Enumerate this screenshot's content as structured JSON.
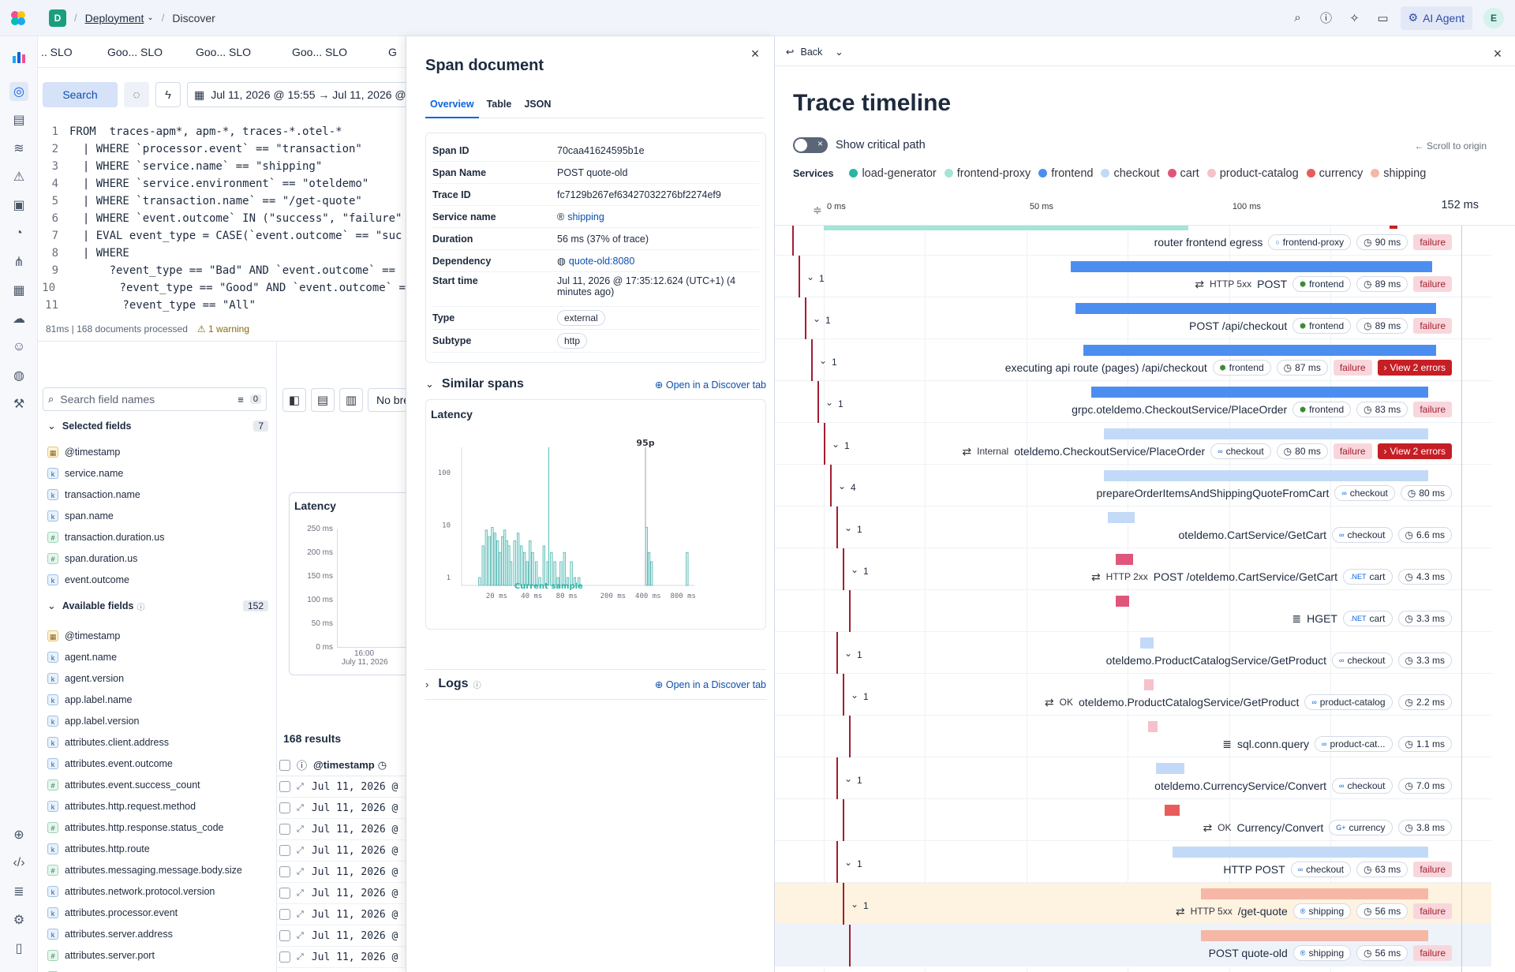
{
  "topbar": {
    "space_letter": "D",
    "breadcrumb_deployment": "Deployment",
    "breadcrumb_discover": "Discover",
    "ai_agent_label": "AI Agent",
    "user_initial": "E"
  },
  "discover": {
    "tabs": [
      ".. SLO",
      "Goo... SLO",
      "Goo... SLO",
      "Goo... SLO",
      "G"
    ],
    "search_label": "Search",
    "date_range": "Jul 11, 2026 @ 15:55 → Jul 11, 2026 @",
    "query_lines": [
      {
        "num": "1",
        "text": "FROM  traces-apm*, apm-*, traces-*.otel-*"
      },
      {
        "num": "2",
        "text": "  | WHERE `processor.event` == \"transaction\""
      },
      {
        "num": "3",
        "text": "  | WHERE `service.name` == \"shipping\""
      },
      {
        "num": "4",
        "text": "  | WHERE `service.environment` == \"oteldemo\""
      },
      {
        "num": "5",
        "text": "  | WHERE `transaction.name` == \"/get-quote\""
      },
      {
        "num": "6",
        "text": "  | WHERE `event.outcome` IN (\"success\", \"failure\""
      },
      {
        "num": "7",
        "text": "  | EVAL event_type = CASE(`event.outcome` == \"suc"
      },
      {
        "num": "8",
        "text": "  | WHERE"
      },
      {
        "num": "9",
        "text": "      ?event_type == \"Bad\" AND `event.outcome` =="
      },
      {
        "num": "10",
        "text": "        ?event_type == \"Good\" AND `event.outcome` ="
      },
      {
        "num": "11",
        "text": "        ?event_type == \"All\""
      }
    ],
    "stats": "81ms | 168 documents processed",
    "warning": "1 warning",
    "field_search_placeholder": "Search field names",
    "filter_count": "0",
    "selected_fields_label": "Selected fields",
    "selected_count": "7",
    "selected_fields": [
      {
        "type": "d",
        "name": "@timestamp"
      },
      {
        "type": "k",
        "name": "service.name"
      },
      {
        "type": "k",
        "name": "transaction.name"
      },
      {
        "type": "k",
        "name": "span.name"
      },
      {
        "type": "n",
        "name": "transaction.duration.us"
      },
      {
        "type": "n",
        "name": "span.duration.us"
      },
      {
        "type": "k",
        "name": "event.outcome"
      }
    ],
    "available_fields_label": "Available fields",
    "available_count": "152",
    "available_fields": [
      {
        "type": "d",
        "name": "@timestamp"
      },
      {
        "type": "k",
        "name": "agent.name"
      },
      {
        "type": "k",
        "name": "agent.version"
      },
      {
        "type": "k",
        "name": "app.label.name"
      },
      {
        "type": "k",
        "name": "app.label.version"
      },
      {
        "type": "k",
        "name": "attributes.client.address"
      },
      {
        "type": "k",
        "name": "attributes.event.outcome"
      },
      {
        "type": "n",
        "name": "attributes.event.success_count"
      },
      {
        "type": "k",
        "name": "attributes.http.request.method"
      },
      {
        "type": "n",
        "name": "attributes.http.response.status_code"
      },
      {
        "type": "k",
        "name": "attributes.http.route"
      },
      {
        "type": "n",
        "name": "attributes.messaging.message.body.size"
      },
      {
        "type": "k",
        "name": "attributes.network.protocol.version"
      },
      {
        "type": "k",
        "name": "attributes.processor.event"
      },
      {
        "type": "k",
        "name": "attributes.server.address"
      },
      {
        "type": "n",
        "name": "attributes.server.port"
      },
      {
        "type": "n",
        "name": "attributes.timestamp.us"
      },
      {
        "type": "n",
        "name": "attributes.transaction.duration.us"
      }
    ],
    "breakdown_placeholder": "No bre",
    "latency_title": "Latency",
    "latency_yticks": [
      "250 ms",
      "200 ms",
      "150 ms",
      "100 ms",
      "50 ms",
      "0 ms"
    ],
    "latency_xtick": "16:00",
    "latency_xdate": "July 11, 2026",
    "results_label": "168 results",
    "timestamp_col": "@timestamp",
    "result_rows": [
      "Jul 11, 2026 @",
      "Jul 11, 2026 @",
      "Jul 11, 2026 @",
      "Jul 11, 2026 @",
      "Jul 11, 2026 @",
      "Jul 11, 2026 @",
      "Jul 11, 2026 @",
      "Jul 11, 2026 @",
      "Jul 11, 2026 @"
    ]
  },
  "span_panel": {
    "title": "Span document",
    "tabs": [
      "Overview",
      "Table",
      "JSON"
    ],
    "fields": [
      {
        "label": "Span ID",
        "value": "70caa41624595b1e"
      },
      {
        "label": "Span Name",
        "value": "POST quote-old"
      },
      {
        "label": "Trace ID",
        "value": "fc7129b267ef63427032276bf2274ef9"
      },
      {
        "label": "Service name",
        "value": "shipping"
      },
      {
        "label": "Duration",
        "value": "56 ms  (37% of trace)"
      },
      {
        "label": "Dependency",
        "value": "quote-old:8080"
      },
      {
        "label": "Start time",
        "value": "Jul 11, 2026 @ 17:35:12.624 (UTC+1) (4 minutes ago)"
      },
      {
        "label": "Type",
        "value": "external"
      },
      {
        "label": "Subtype",
        "value": "http"
      }
    ],
    "similar_spans": "Similar spans",
    "open_discover": "Open in a Discover tab",
    "latency_title": "Latency",
    "logs": "Logs",
    "colors": {
      "accent": "#0b64dd",
      "hist_fill": "#d9f3f1",
      "hist_line": "#54b5b0"
    }
  },
  "chart_data": {
    "type": "bar",
    "title": "Latency",
    "y_scale": "log",
    "yticks": [
      "100",
      "10",
      "1"
    ],
    "xticks": [
      "20 ms",
      "40 ms",
      "80 ms",
      "200 ms",
      "400 ms",
      "800 ms"
    ],
    "annotations": [
      "95p",
      "Current sample"
    ],
    "x_ms": [
      14,
      15,
      16,
      17,
      18,
      19,
      20,
      21,
      22,
      23,
      24,
      25,
      26,
      28,
      30,
      32,
      34,
      36,
      38,
      40,
      43,
      46,
      50,
      54,
      58,
      62,
      66,
      70,
      75,
      80,
      86,
      92,
      100,
      380,
      400,
      420,
      850
    ],
    "counts": [
      1,
      4,
      8,
      6,
      9,
      7,
      5,
      3,
      6,
      8,
      5,
      4,
      2,
      5,
      7,
      4,
      3,
      2,
      5,
      3,
      2,
      1,
      4,
      2,
      3,
      2,
      1,
      2,
      3,
      1,
      2,
      1,
      1,
      9,
      3,
      2,
      3
    ]
  },
  "trace": {
    "back_label": "Back",
    "title": "Trace timeline",
    "critical_path": "Show critical path",
    "scroll_origin": "Scroll to origin",
    "services_label": "Services",
    "services": [
      {
        "name": "load-generator",
        "color": "#2bb5a5"
      },
      {
        "name": "frontend-proxy",
        "color": "#a6e3d8"
      },
      {
        "name": "frontend",
        "color": "#4c8ef0"
      },
      {
        "name": "checkout",
        "color": "#c2daf7"
      },
      {
        "name": "cart",
        "color": "#e0567a"
      },
      {
        "name": "product-catalog",
        "color": "#f6c1ca"
      },
      {
        "name": "currency",
        "color": "#e85c5c"
      },
      {
        "name": "shipping",
        "color": "#f6b7a7"
      }
    ],
    "axis_ticks": [
      "0 ms",
      "50 ms",
      "100 ms"
    ],
    "axis_max": "152 ms",
    "total_ms": 152,
    "rows": [
      {
        "depth": 0,
        "count": "",
        "start": 0,
        "dur": 90,
        "color": "#a6e3d8",
        "prefix": "",
        "name": "router frontend egress",
        "service": "frontend-proxy",
        "svc_icon": "○",
        "duration": "90 ms",
        "failure": "failure",
        "errors": ""
      },
      {
        "depth": 1,
        "count": "1",
        "start": 61,
        "dur": 89,
        "color": "#4c8ef0",
        "prefix": "HTTP 5xx",
        "name": "POST",
        "service": "frontend",
        "svc_icon": "⬢",
        "duration": "89 ms",
        "failure": "failure",
        "errors": ""
      },
      {
        "depth": 2,
        "count": "1",
        "start": 62,
        "dur": 89,
        "color": "#4c8ef0",
        "prefix": "",
        "name": "POST /api/checkout",
        "service": "frontend",
        "svc_icon": "⬢",
        "duration": "89 ms",
        "failure": "failure",
        "errors": ""
      },
      {
        "depth": 3,
        "count": "1",
        "start": 64,
        "dur": 87,
        "color": "#4c8ef0",
        "prefix": "",
        "name": "executing api route (pages) /api/checkout",
        "service": "frontend",
        "svc_icon": "⬢",
        "duration": "87 ms",
        "failure": "failure",
        "errors": "View 2 errors"
      },
      {
        "depth": 4,
        "count": "1",
        "start": 66,
        "dur": 83,
        "color": "#4c8ef0",
        "prefix": "",
        "name": "grpc.oteldemo.CheckoutService/PlaceOrder",
        "service": "frontend",
        "svc_icon": "⬢",
        "duration": "83 ms",
        "failure": "failure",
        "errors": ""
      },
      {
        "depth": 5,
        "count": "1",
        "start": 69,
        "dur": 80,
        "color": "#c2daf7",
        "prefix": "Internal",
        "name": "oteldemo.CheckoutService/PlaceOrder",
        "service": "checkout",
        "svc_icon": "∞",
        "duration": "80 ms",
        "failure": "failure",
        "errors": "View 2 errors"
      },
      {
        "depth": 6,
        "count": "4",
        "start": 69,
        "dur": 80,
        "color": "#c2daf7",
        "prefix": "",
        "name": "prepareOrderItemsAndShippingQuoteFromCart",
        "service": "checkout",
        "svc_icon": "∞",
        "duration": "80 ms",
        "failure": "",
        "errors": ""
      },
      {
        "depth": 7,
        "count": "1",
        "start": 70,
        "dur": 6.6,
        "color": "#c2daf7",
        "prefix": "",
        "name": "oteldemo.CartService/GetCart",
        "service": "checkout",
        "svc_icon": "∞",
        "duration": "6.6 ms",
        "failure": "",
        "errors": ""
      },
      {
        "depth": 8,
        "count": "1",
        "start": 72,
        "dur": 4.3,
        "color": "#e0567a",
        "prefix": "HTTP 2xx",
        "name": "POST /oteldemo.CartService/GetCart",
        "service": "cart",
        "svc_icon": ".NET",
        "duration": "4.3 ms",
        "failure": "",
        "errors": ""
      },
      {
        "depth": 9,
        "count": "",
        "start": 72,
        "dur": 3.3,
        "color": "#e0567a",
        "prefix": "",
        "name": "HGET",
        "service": "cart",
        "svc_icon": ".NET",
        "duration": "3.3 ms",
        "failure": "",
        "errors": "",
        "db": true
      },
      {
        "depth": 7,
        "count": "1",
        "start": 78,
        "dur": 3.3,
        "color": "#c2daf7",
        "prefix": "",
        "name": "oteldemo.ProductCatalogService/GetProduct",
        "service": "checkout",
        "svc_icon": "∞",
        "duration": "3.3 ms",
        "failure": "",
        "errors": ""
      },
      {
        "depth": 8,
        "count": "1",
        "start": 79,
        "dur": 2.2,
        "color": "#f6c1ca",
        "prefix": "OK",
        "name": "oteldemo.ProductCatalogService/GetProduct",
        "service": "product-catalog",
        "svc_icon": "∞",
        "duration": "2.2 ms",
        "failure": "",
        "errors": ""
      },
      {
        "depth": 9,
        "count": "",
        "start": 80,
        "dur": 1.1,
        "color": "#f6c1ca",
        "prefix": "",
        "name": "sql.conn.query",
        "service": "product-cat...",
        "svc_icon": "∞",
        "duration": "1.1 ms",
        "failure": "",
        "errors": "",
        "db": true
      },
      {
        "depth": 7,
        "count": "1",
        "start": 82,
        "dur": 7.0,
        "color": "#c2daf7",
        "prefix": "",
        "name": "oteldemo.CurrencyService/Convert",
        "service": "checkout",
        "svc_icon": "∞",
        "duration": "7.0 ms",
        "failure": "",
        "errors": ""
      },
      {
        "depth": 8,
        "count": "",
        "start": 84,
        "dur": 3.8,
        "color": "#e85c5c",
        "prefix": "OK",
        "name": "Currency/Convert",
        "service": "currency",
        "svc_icon": "G+",
        "duration": "3.8 ms",
        "failure": "",
        "errors": ""
      },
      {
        "depth": 7,
        "count": "1",
        "start": 86,
        "dur": 63,
        "color": "#c2daf7",
        "prefix": "",
        "name": "HTTP POST",
        "service": "checkout",
        "svc_icon": "∞",
        "duration": "63 ms",
        "failure": "failure",
        "errors": ""
      },
      {
        "depth": 8,
        "count": "1",
        "start": 93,
        "dur": 56,
        "color": "#f6b7a7",
        "prefix": "HTTP 5xx",
        "name": "/get-quote",
        "service": "shipping",
        "svc_icon": "®",
        "duration": "56 ms",
        "failure": "failure",
        "errors": "",
        "highlight": "#fdf3e0"
      },
      {
        "depth": 9,
        "count": "",
        "start": 93,
        "dur": 56,
        "color": "#f6b7a7",
        "prefix": "",
        "name": "POST quote-old",
        "service": "shipping",
        "svc_icon": "®",
        "duration": "56 ms",
        "failure": "failure",
        "errors": "",
        "highlight": "#eef3fa"
      }
    ]
  }
}
